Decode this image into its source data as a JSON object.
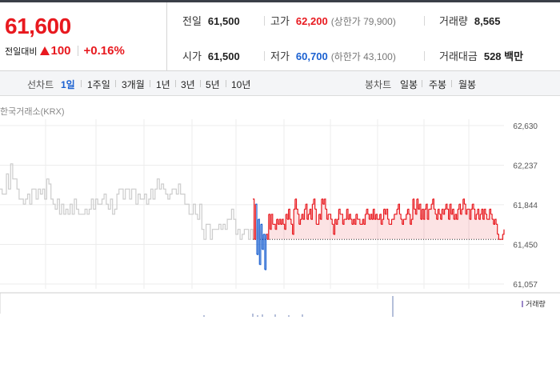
{
  "summary": {
    "current_price": "61,600",
    "change_label": "전일대비",
    "change_value": "100",
    "change_percent": "+0.16%",
    "prev_close_label": "전일",
    "prev_close": "61,500",
    "open_label": "시가",
    "open": "61,500",
    "high_label": "고가",
    "high": "62,200",
    "upper_limit": "(상한가 79,900)",
    "low_label": "저가",
    "low": "60,700",
    "lower_limit": "(하한가 43,100)",
    "volume_label": "거래량",
    "volume": "8,565",
    "amount_label": "거래대금",
    "amount": "528 백만"
  },
  "colors": {
    "up": "#e8191f",
    "down": "#1b61d1",
    "base": "#cccccc",
    "active_tab": "#1b61d1"
  },
  "periods": {
    "label": "선차트",
    "items": [
      "1일",
      "1주일",
      "3개월",
      "1년",
      "3년",
      "5년",
      "10년"
    ],
    "active": "1일"
  },
  "candles": {
    "label": "봉차트",
    "items": [
      "일봉",
      "주봉",
      "월봉"
    ]
  },
  "market_label": "한국거래소(KRX)",
  "legend_volume": "거래량",
  "chart_data": {
    "type": "line",
    "title": "",
    "xlabel": "",
    "ylabel": "",
    "ylim": [
      61057,
      62630
    ],
    "y_ticks": [
      "62,630",
      "62,237",
      "61,844",
      "61,450",
      "61,057"
    ],
    "y_tick_values": [
      62630,
      62237,
      61844,
      61450,
      61057
    ],
    "baseline": 61500,
    "grid": true,
    "series": [
      {
        "pre_market": [
          62000,
          61950,
          61950,
          62150,
          62000,
          62250,
          62100,
          62100,
          62000,
          61900,
          61900,
          61850,
          61900,
          61950,
          61850,
          62000,
          62000,
          61900,
          62000,
          61950,
          62000,
          61900,
          62100,
          62050,
          61900,
          61850,
          61800,
          61900,
          61750,
          61850,
          61750,
          61800,
          61750,
          61850,
          61750,
          61900,
          61800,
          61750,
          61750,
          61750,
          61800,
          61750,
          61800,
          61900,
          61800,
          61900,
          61850,
          61850,
          61900,
          61950,
          61850,
          61800,
          61900,
          61750,
          61800,
          61950,
          62000,
          62000,
          61900,
          62000,
          62000,
          61900,
          62000,
          62000,
          61850,
          61950,
          61900,
          61900,
          61950,
          61850,
          61900,
          62000,
          61900,
          62000,
          62100,
          62000,
          62050,
          62000,
          61950,
          61900,
          61950,
          62000,
          62000,
          61950,
          62050,
          61950,
          61950,
          61850,
          61850,
          61750,
          61750,
          61850,
          61750,
          61700,
          61850,
          61600,
          61500,
          61650,
          61650,
          61500,
          61600,
          61600,
          61600,
          61650,
          61600,
          61650,
          61600,
          61700,
          61700,
          61800,
          61700,
          61550,
          61600,
          61500,
          61550,
          61600,
          61600,
          61500,
          61600,
          61500
        ],
        "intraday": [
          61900,
          61500,
          61850,
          61350,
          61700,
          61250,
          61650,
          61400,
          61550,
          61200,
          61550,
          61500,
          61750,
          61600,
          61750,
          61650,
          61650,
          61600,
          61700,
          61650,
          61700,
          61650,
          61700,
          61650,
          61600,
          61750,
          61700,
          61800,
          61700,
          61650,
          61550,
          61800,
          61900,
          61800,
          61750,
          61650,
          61700,
          61750,
          61700,
          61800,
          61850,
          61700,
          61750,
          61800,
          61700,
          61850,
          61900,
          61800,
          61650,
          61650,
          61750,
          61700,
          61900,
          61850,
          61900,
          61800,
          61700,
          61750,
          61750,
          61700,
          61650,
          61550,
          61700,
          61650,
          61700,
          61800,
          61750,
          61750,
          61650,
          61700,
          61700,
          61800,
          61700,
          61750,
          61700,
          61650,
          61700,
          61650,
          61750,
          61700,
          61700,
          61650,
          61650,
          61700,
          61650,
          61750,
          61800,
          61750,
          61700,
          61750,
          61700,
          61800,
          61700,
          61750,
          61700,
          61700,
          61750,
          61650,
          61700,
          61800,
          61750,
          61800,
          61700,
          61650,
          61650,
          61700,
          61700,
          61750,
          61750,
          61800,
          61850,
          61750,
          61700,
          61650,
          61700,
          61700,
          61750,
          61800,
          61750,
          61650,
          61700,
          61900,
          61800,
          61750,
          61900,
          61800,
          61850,
          61700,
          61800,
          61700,
          61800,
          61850,
          61700,
          61800,
          61800,
          61850,
          61900,
          61800,
          61750,
          61700,
          61800,
          61750,
          61700,
          61800,
          61750,
          61800,
          61850,
          61800,
          61700,
          61850,
          61750,
          61800,
          61700,
          61750,
          61700,
          61800,
          61850,
          61750,
          61800,
          61900,
          61850,
          61750,
          61800,
          61800,
          61700,
          61800,
          61850,
          61800,
          61700,
          61750,
          61800,
          61700,
          61750,
          61800,
          61700,
          61800,
          61750,
          61700,
          61700,
          61800,
          61750,
          61700,
          61650,
          61700,
          61650,
          61550,
          61500,
          61500,
          61500,
          61550,
          61600
        ]
      }
    ]
  }
}
